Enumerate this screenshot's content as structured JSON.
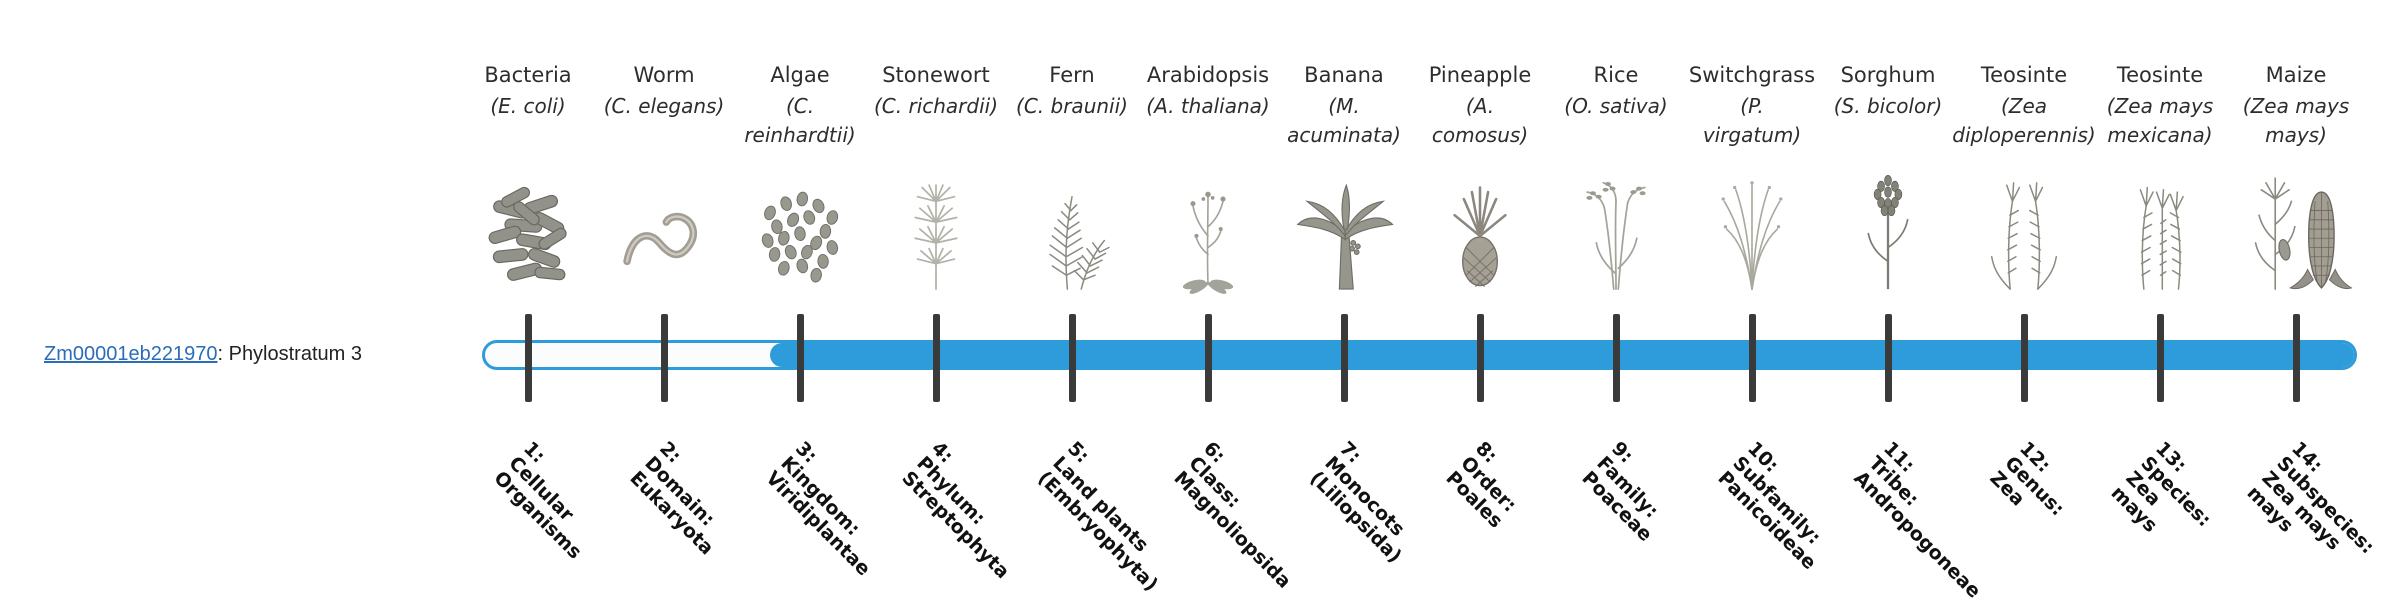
{
  "gene": {
    "id": "Zm00001eb221970",
    "label_suffix": ": Phylostratum 3",
    "phylostratum": 3
  },
  "colors": {
    "bar_fill": "#2e9bdb",
    "bar_empty": "#fbfcfd",
    "tick": "#3a3a3a",
    "link": "#2a6db8",
    "text": "#2d2d2d",
    "rank_text": "#111111"
  },
  "columns": [
    {
      "index": 1,
      "common_name": "Bacteria",
      "scientific_name": "(E. coli)",
      "icon": "bacteria-icon",
      "rank_label": "1:\nCellular\nOrganisms"
    },
    {
      "index": 2,
      "common_name": "Worm",
      "scientific_name": "(C. elegans)",
      "icon": "worm-icon",
      "rank_label": "2:\nDomain:\nEukaryota"
    },
    {
      "index": 3,
      "common_name": "Algae",
      "scientific_name": "(C.\nreinhardtii)",
      "icon": "algae-icon",
      "rank_label": "3:\nKingdom:\nViridiplantae"
    },
    {
      "index": 4,
      "common_name": "Stonewort",
      "scientific_name": "(C. richardii)",
      "icon": "stonewort-icon",
      "rank_label": "4:\nPhylum:\nStreptophyta"
    },
    {
      "index": 5,
      "common_name": "Fern",
      "scientific_name": "(C. braunii)",
      "icon": "fern-icon",
      "rank_label": "5:\nLand plants\n(Embryophyta)"
    },
    {
      "index": 6,
      "common_name": "Arabidopsis",
      "scientific_name": "(A. thaliana)",
      "icon": "arabidopsis-icon",
      "rank_label": "6:\nClass:\nMagnoliopsida"
    },
    {
      "index": 7,
      "common_name": "Banana",
      "scientific_name": "(M.\nacuminata)",
      "icon": "banana-icon",
      "rank_label": "7:\nMonocots\n(Liliopsida)"
    },
    {
      "index": 8,
      "common_name": "Pineapple",
      "scientific_name": "(A.\ncomosus)",
      "icon": "pineapple-icon",
      "rank_label": "8:\nOrder:\nPoales"
    },
    {
      "index": 9,
      "common_name": "Rice",
      "scientific_name": "(O. sativa)",
      "icon": "rice-icon",
      "rank_label": "9:\nFamily:\nPoaceae"
    },
    {
      "index": 10,
      "common_name": "Switchgrass",
      "scientific_name": "(P.\nvirgatum)",
      "icon": "switchgrass-icon",
      "rank_label": "10:\nSubfamily:\nPanicoideae"
    },
    {
      "index": 11,
      "common_name": "Sorghum",
      "scientific_name": "(S. bicolor)",
      "icon": "sorghum-icon",
      "rank_label": "11:\nTribe:\nAndropogoneae"
    },
    {
      "index": 12,
      "common_name": "Teosinte",
      "scientific_name": "(Zea\ndiploperennis)",
      "icon": "teosinte1-icon",
      "rank_label": "12:\nGenus:\nZea"
    },
    {
      "index": 13,
      "common_name": "Teosinte",
      "scientific_name": "(Zea mays\nmexicana)",
      "icon": "teosinte2-icon",
      "rank_label": "13:\nSpecies:\nZea\nmays"
    },
    {
      "index": 14,
      "common_name": "Maize",
      "scientific_name": "(Zea mays\nmays)",
      "icon": "maize-icon",
      "rank_label": "14:\nSubspecies:\nZea mays\nmays"
    }
  ]
}
